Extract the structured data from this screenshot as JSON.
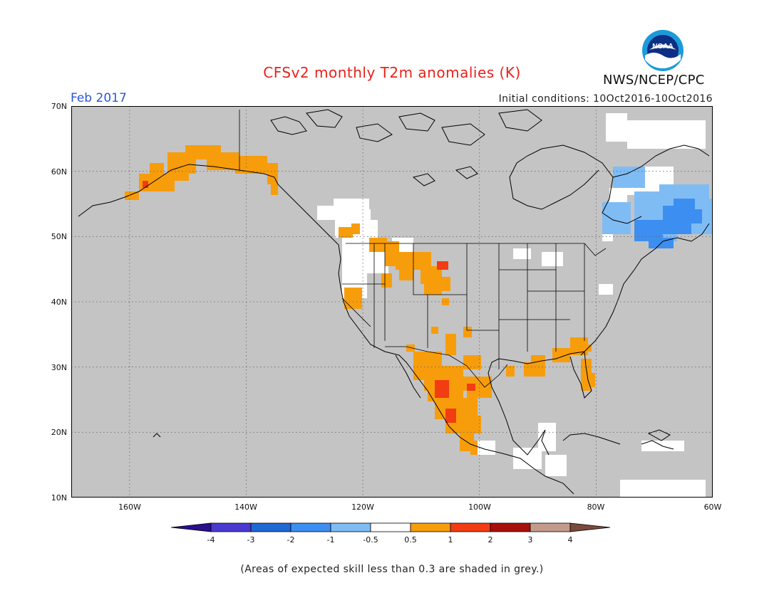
{
  "title": "CFSv2 monthly T2m anomalies (K)",
  "org": "NWS/NCEP/CPC",
  "logo_text": "NOAA",
  "period": "Feb 2017",
  "initial_conditions": "Initial conditions: 10Oct2016-10Oct2016",
  "footnote": "(Areas of expected skill less than 0.3 are shaded in grey.)",
  "map": {
    "lon_range": [
      -170,
      -60
    ],
    "lat_range": [
      10,
      70
    ],
    "lat_labels": [
      "70N",
      "60N",
      "50N",
      "40N",
      "30N",
      "20N",
      "10N"
    ],
    "lon_labels": [
      "160W",
      "140W",
      "120W",
      "100W",
      "80W",
      "60W"
    ],
    "skill_mask_color": "#c4c4c4",
    "grid": "dotted"
  },
  "colorbar": {
    "labels": [
      "-4",
      "-3",
      "-2",
      "-1",
      "-0.5",
      "0.5",
      "1",
      "2",
      "3",
      "4"
    ],
    "colors": [
      "#2b0f8c",
      "#4a3ad0",
      "#2068d4",
      "#3c8ff0",
      "#80bcf4",
      "#ffffff",
      "#f79d0b",
      "#f23c12",
      "#a8100c",
      "#c49b8b",
      "#7a4a3b"
    ]
  },
  "anomaly_regions": [
    {
      "region": "Alaska south coast",
      "category": "0.5 to 1",
      "color": "#f79d0b"
    },
    {
      "region": "Pacific Northwest / Northern Rockies",
      "category": "0.5 to 1",
      "color": "#f79d0b"
    },
    {
      "region": "Northern Plains (spot)",
      "category": "1 to 2",
      "color": "#f23c12"
    },
    {
      "region": "Northwest Mexico / Sierra Madre",
      "category": "0.5 to 1",
      "color": "#f79d0b"
    },
    {
      "region": "Northwest Mexico (spots)",
      "category": "1 to 2",
      "color": "#f23c12"
    },
    {
      "region": "Texas Gulf coast",
      "category": "0.5 to 1",
      "color": "#f79d0b"
    },
    {
      "region": "Southeast US / Florida",
      "category": "0.5 to 1",
      "color": "#f79d0b"
    },
    {
      "region": "Eastern Canada / Labrador",
      "category": "-1 to -0.5",
      "color": "#80bcf4"
    },
    {
      "region": "Quebec core",
      "category": "-2 to -1",
      "color": "#3c8ff0"
    },
    {
      "region": "California / Great Basin / Central America",
      "category": "-0.5 to 0.5",
      "color": "#ffffff"
    }
  ]
}
